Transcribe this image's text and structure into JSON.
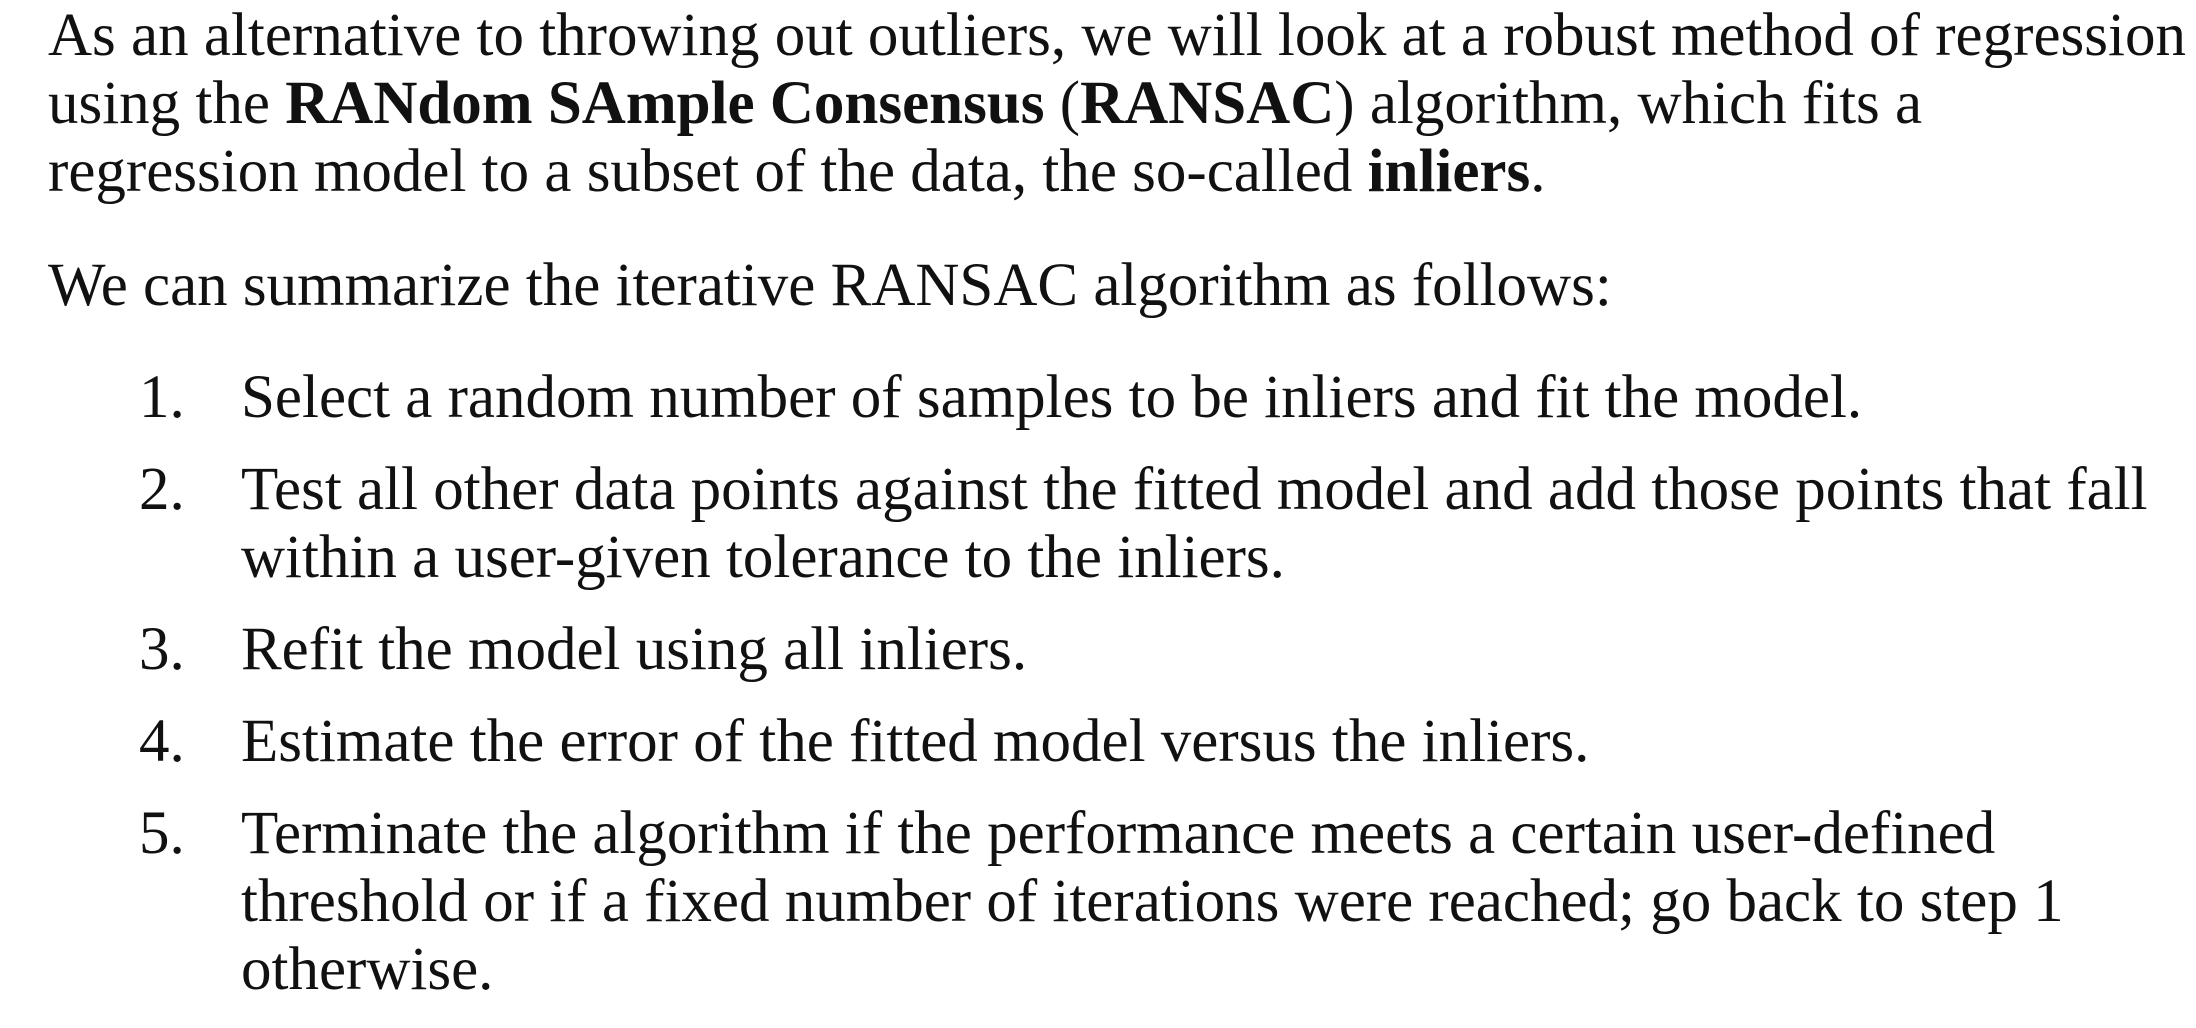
{
  "paragraph1": {
    "s1": "As an alternative to throwing out outliers, we will look at a robust method of regression using the ",
    "b1": "RANdom SAmple Consensus",
    "s2": " (",
    "b2": "RANSAC",
    "s3": ") algorithm, which fits a regression model to a subset of the data, the so-called ",
    "b3": "inliers",
    "s4": "."
  },
  "paragraph2": "We can summarize the iterative RANSAC algorithm as follows:",
  "steps": [
    {
      "num": "1.",
      "text": "Select a random number of samples to be inliers and fit the model."
    },
    {
      "num": "2.",
      "text": "Test all other data points against the fitted model and add those points that fall within a user-given tolerance to the inliers."
    },
    {
      "num": "3.",
      "text": "Refit the model using all inliers."
    },
    {
      "num": "4.",
      "text": "Estimate the error of the fitted model versus the inliers."
    },
    {
      "num": "5.",
      "text": "Terminate the algorithm if the performance meets a certain user-defined threshold or if a fixed number of iterations were reached; go back to step 1 otherwise."
    }
  ]
}
